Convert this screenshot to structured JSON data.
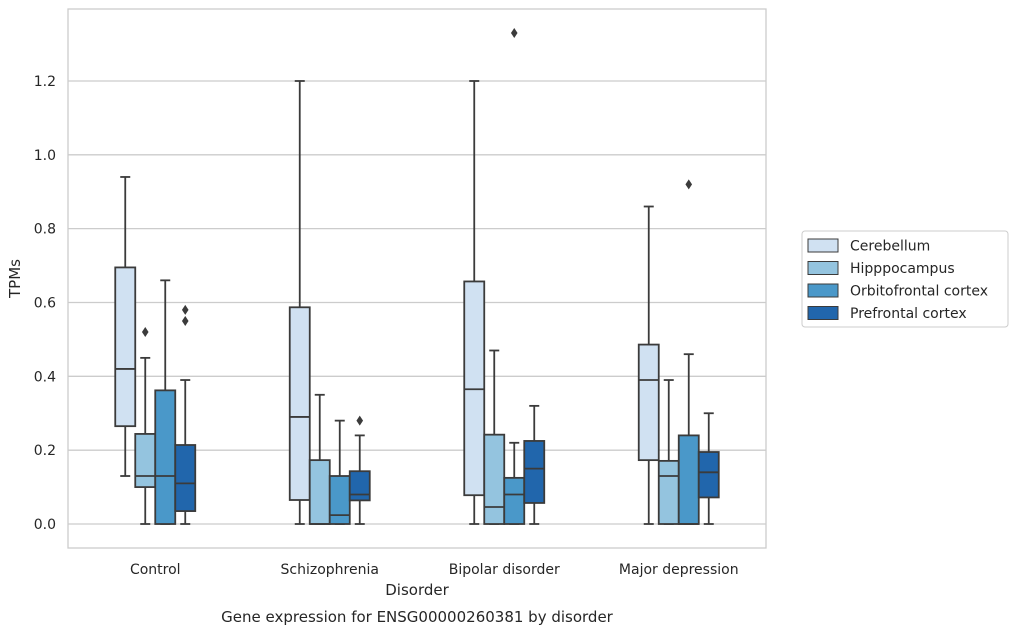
{
  "chart_data": {
    "type": "box",
    "caption": "Gene expression for ENSG00000260381 by disorder",
    "xlabel": "Disorder",
    "ylabel": "TPMs",
    "ylim": [
      -0.065,
      1.395
    ],
    "yticks": [
      "0.0",
      "0.2",
      "0.4",
      "0.6",
      "0.8",
      "1.0",
      "1.2"
    ],
    "ytick_values": [
      0.0,
      0.2,
      0.4,
      0.6,
      0.8,
      1.0,
      1.2
    ],
    "grid": true,
    "legend_position": "right",
    "categories": [
      "Control",
      "Schizophrenia",
      "Bipolar disorder",
      "Major depression"
    ],
    "series": [
      {
        "name": "Cerebellum",
        "color": "#d0e1f2",
        "boxes": [
          {
            "whislo": 0.13,
            "q1": 0.265,
            "med": 0.42,
            "q3": 0.695,
            "whishi": 0.94,
            "fliers": []
          },
          {
            "whislo": 0.0,
            "q1": 0.065,
            "med": 0.29,
            "q3": 0.587,
            "whishi": 1.2,
            "fliers": []
          },
          {
            "whislo": 0.0,
            "q1": 0.078,
            "med": 0.365,
            "q3": 0.657,
            "whishi": 1.2,
            "fliers": []
          },
          {
            "whislo": 0.0,
            "q1": 0.173,
            "med": 0.39,
            "q3": 0.486,
            "whishi": 0.86,
            "fliers": []
          }
        ]
      },
      {
        "name": "Hipppocampus",
        "color": "#94c4df",
        "boxes": [
          {
            "whislo": 0.0,
            "q1": 0.1,
            "med": 0.13,
            "q3": 0.244,
            "whishi": 0.45,
            "fliers": [
              0.52
            ]
          },
          {
            "whislo": 0.0,
            "q1": 0.0,
            "med": 0.0,
            "q3": 0.173,
            "whishi": 0.35,
            "fliers": []
          },
          {
            "whislo": 0.0,
            "q1": 0.0,
            "med": 0.046,
            "q3": 0.242,
            "whishi": 0.47,
            "fliers": []
          },
          {
            "whislo": 0.0,
            "q1": 0.0,
            "med": 0.13,
            "q3": 0.171,
            "whishi": 0.39,
            "fliers": []
          }
        ]
      },
      {
        "name": "Orbitofrontal cortex",
        "color": "#4a98c9",
        "boxes": [
          {
            "whislo": 0.0,
            "q1": 0.0,
            "med": 0.13,
            "q3": 0.362,
            "whishi": 0.66,
            "fliers": []
          },
          {
            "whislo": 0.0,
            "q1": 0.0,
            "med": 0.024,
            "q3": 0.13,
            "whishi": 0.28,
            "fliers": []
          },
          {
            "whislo": 0.0,
            "q1": 0.0,
            "med": 0.08,
            "q3": 0.125,
            "whishi": 0.22,
            "fliers": [
              1.33
            ]
          },
          {
            "whislo": 0.0,
            "q1": 0.0,
            "med": 0.0,
            "q3": 0.24,
            "whishi": 0.46,
            "fliers": [
              0.92
            ]
          }
        ]
      },
      {
        "name": "Prefrontal cortex",
        "color": "#2166ac",
        "boxes": [
          {
            "whislo": 0.0,
            "q1": 0.035,
            "med": 0.11,
            "q3": 0.214,
            "whishi": 0.39,
            "fliers": [
              0.55,
              0.58
            ]
          },
          {
            "whislo": 0.0,
            "q1": 0.064,
            "med": 0.08,
            "q3": 0.143,
            "whishi": 0.24,
            "fliers": [
              0.28
            ]
          },
          {
            "whislo": 0.0,
            "q1": 0.057,
            "med": 0.15,
            "q3": 0.225,
            "whishi": 0.32,
            "fliers": []
          },
          {
            "whislo": 0.0,
            "q1": 0.072,
            "med": 0.14,
            "q3": 0.195,
            "whishi": 0.3,
            "fliers": []
          }
        ]
      }
    ]
  }
}
